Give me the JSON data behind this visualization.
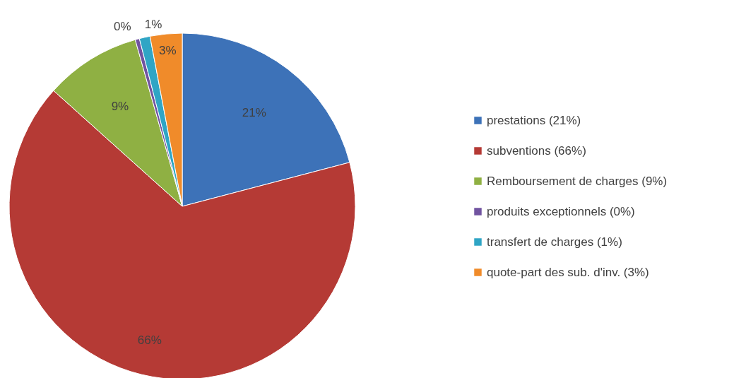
{
  "chart_data": {
    "type": "pie",
    "categories": [
      "prestations (21%)",
      "subventions (66%)",
      "Remboursement de charges (9%)",
      "produits exceptionnels (0%)",
      "transfert de charges (1%)",
      "quote-part des sub. d'inv. (3%)"
    ],
    "values": [
      21,
      66,
      9,
      0.4,
      1,
      3
    ],
    "value_labels": [
      "21%",
      "66%",
      "9%",
      "0%",
      "1%",
      "3%"
    ],
    "colors": [
      "#3d72b8",
      "#b53a35",
      "#8fb043",
      "#7153a0",
      "#2fa5c5",
      "#f08b2a"
    ],
    "legend": "right"
  }
}
